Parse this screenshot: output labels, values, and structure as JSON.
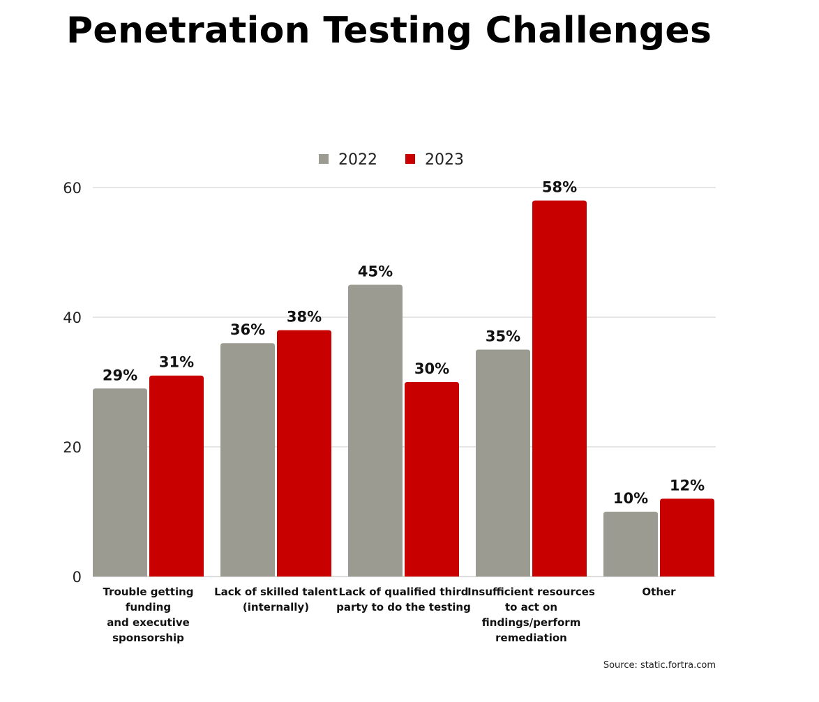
{
  "chart_data": {
    "type": "bar",
    "title": "Penetration Testing Challenges",
    "categories": [
      [
        "Trouble getting",
        "funding",
        "and executive",
        "sponsorship"
      ],
      [
        "Lack of skilled talent",
        "(internally)"
      ],
      [
        "Lack of qualified third",
        "party to do the testing"
      ],
      [
        "Insufficient resources",
        "to act on",
        "findings/perform",
        "remediation"
      ],
      [
        "Other"
      ]
    ],
    "series": [
      {
        "name": "2022",
        "color": "#9b9b92",
        "values": [
          29,
          36,
          45,
          35,
          10
        ],
        "labels": [
          "29%",
          "36%",
          "45%",
          "35%",
          "10%"
        ]
      },
      {
        "name": "2023",
        "color": "#c80000",
        "values": [
          31,
          38,
          30,
          58,
          12
        ],
        "labels": [
          "31%",
          "38%",
          "30%",
          "58%",
          "12%"
        ]
      }
    ],
    "ylim": [
      0,
      60
    ],
    "yticks": [
      "0",
      "20",
      "40",
      "60"
    ],
    "ytick_values": [
      0,
      20,
      40,
      60
    ],
    "grid": true,
    "legend_position": "top-center",
    "source": "Source: static.fortra.com"
  }
}
